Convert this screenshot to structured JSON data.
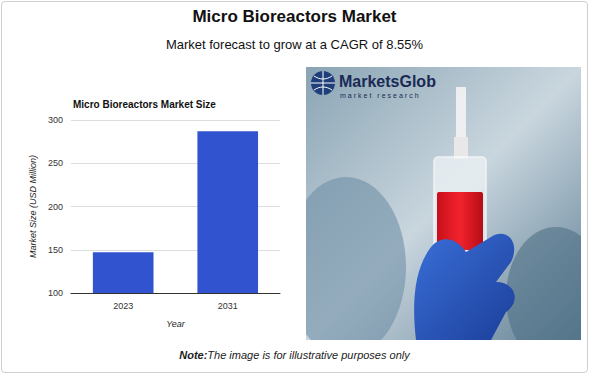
{
  "header": {
    "title": "Micro Bioreactors Market",
    "subtitle": "Market forecast to grow at a CAGR of 8.55%"
  },
  "chart_data": {
    "type": "bar",
    "title": "Micro Bioreactors Market Size",
    "x_label": "Year",
    "y_label": "Market Size (USD Million)",
    "categories": [
      "2023",
      "2031"
    ],
    "values": [
      147,
      287
    ],
    "color": "#3153cf",
    "ylim": [
      100,
      300
    ],
    "yticks": [
      100,
      150,
      200,
      250,
      300
    ],
    "grid": true
  },
  "image": {
    "logo": "MarketsGlob",
    "logo_tagline": "market research"
  },
  "note": {
    "label": "Note:",
    "text": "The image is for illustrative purposes only"
  }
}
